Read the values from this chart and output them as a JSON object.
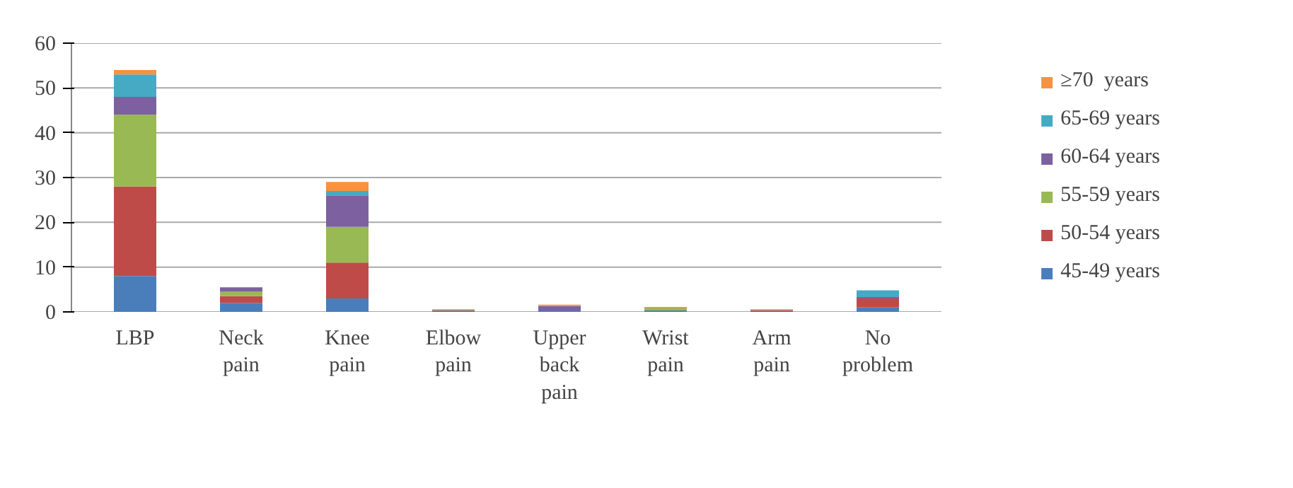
{
  "chart_data": {
    "type": "bar",
    "stacked": true,
    "categories": [
      "LBP",
      "Neck pain",
      "Knee pain",
      "Elbow pain",
      "Upper back pain",
      "Wrist pain",
      "Arm pain",
      "No problem"
    ],
    "series": [
      {
        "name": "45-49 years",
        "color": "#4a7ebb",
        "values": [
          8,
          2,
          3,
          0.3,
          0.3,
          0.3,
          0,
          1
        ]
      },
      {
        "name": "50-54 years",
        "color": "#be4b48",
        "values": [
          20,
          1.5,
          8,
          0,
          0,
          0,
          0,
          2
        ]
      },
      {
        "name": "55-59 years",
        "color": "#98b954",
        "values": [
          16,
          1,
          8,
          0,
          0,
          0.5,
          0,
          0
        ]
      },
      {
        "name": "60-64 years",
        "color": "#7d60a0",
        "values": [
          4,
          1,
          7,
          0,
          1,
          0,
          0.3,
          0.3
        ]
      },
      {
        "name": "65-69 years",
        "color": "#46aac5",
        "values": [
          5,
          0,
          1,
          0,
          0,
          0,
          0,
          1.5
        ]
      },
      {
        "name": "≥70  years",
        "color": "#f69240",
        "values": [
          1,
          0,
          2,
          0.3,
          0.3,
          0.3,
          0.3,
          0
        ]
      }
    ],
    "ylim": [
      0,
      60
    ],
    "yticks": [
      0,
      10,
      20,
      30,
      40,
      50,
      60
    ],
    "grid": "y",
    "legend": "right"
  }
}
